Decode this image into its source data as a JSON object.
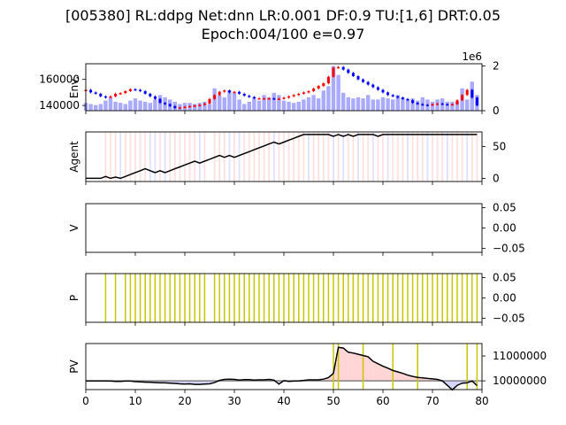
{
  "title_line1": "[005380] RL:ddpg Net:dnn LR:0.001 DF:0.9 TU:[1,6] DRT:0.05",
  "title_line2": "Epoch:004/100 e=0.97",
  "colors": {
    "buy": "#ff0000",
    "sell": "#0000ff",
    "volume": "#aaaaff",
    "hold_line": "#c7c700",
    "pos_fill": "#ffd5d5",
    "neg_fill": "#d5d5ff",
    "baseline": "#808080"
  },
  "chart_data": [
    {
      "name": "env",
      "type": "candlestick+bar",
      "ylabel": "Env.",
      "x_range": [
        0,
        80
      ],
      "price_ticks": [
        "140000",
        "160000"
      ],
      "price_range": [
        136000,
        172000
      ],
      "volume_offset_label": "1e6",
      "volume_ticks": [
        "0",
        "2"
      ],
      "volume_range": [
        0,
        2.1
      ],
      "close": [
        152000,
        150000,
        149000,
        147000,
        146000,
        147000,
        149000,
        149500,
        151000,
        152500,
        152000,
        151000,
        149000,
        147000,
        145000,
        142000,
        141000,
        139500,
        138000,
        138500,
        139000,
        139500,
        140000,
        140500,
        141500,
        145000,
        148000,
        150500,
        151500,
        150000,
        150500,
        149000,
        147500,
        146500,
        145500,
        145500,
        145500,
        145500,
        145000,
        145200,
        146000,
        147000,
        148000,
        149000,
        150000,
        151000,
        153000,
        155000,
        157000,
        162000,
        169000,
        169500,
        167500,
        165000,
        162500,
        160000,
        158000,
        156000,
        154000,
        152000,
        150000,
        148000,
        147000,
        146000,
        145000,
        144000,
        142000,
        141000,
        140500,
        140000,
        141000,
        141500,
        141000,
        140500,
        141000,
        144000,
        148000,
        152000,
        146000,
        140000
      ],
      "volume": [
        0.35,
        0.3,
        0.25,
        0.3,
        0.45,
        0.6,
        0.4,
        0.35,
        0.3,
        0.45,
        0.55,
        0.45,
        0.4,
        0.35,
        0.5,
        0.7,
        0.6,
        0.5,
        0.4,
        0.3,
        0.35,
        0.35,
        0.3,
        0.35,
        0.4,
        0.3,
        1.0,
        0.7,
        0.6,
        0.9,
        0.8,
        0.5,
        0.3,
        0.4,
        0.6,
        0.45,
        0.7,
        0.6,
        0.8,
        0.7,
        0.45,
        0.4,
        0.35,
        0.4,
        0.5,
        0.6,
        0.7,
        0.55,
        0.9,
        1.1,
        2.0,
        1.6,
        0.8,
        0.6,
        0.55,
        0.6,
        0.55,
        0.7,
        0.5,
        0.5,
        0.6,
        0.55,
        0.5,
        0.7,
        0.6,
        0.5,
        0.55,
        0.45,
        0.6,
        0.5,
        0.4,
        0.5,
        0.55,
        0.4,
        0.4,
        0.4,
        1.0,
        0.5,
        1.3,
        0.7
      ]
    },
    {
      "name": "agent",
      "type": "line",
      "ylabel": "Agent",
      "x_range": [
        0,
        80
      ],
      "y_range": [
        -5,
        73
      ],
      "y_ticks": [
        "0",
        "50"
      ],
      "num_stocks": [
        0,
        0,
        0,
        0,
        3,
        0,
        2,
        0,
        3,
        6,
        9,
        12,
        15,
        12,
        9,
        12,
        9,
        12,
        15,
        18,
        21,
        24,
        27,
        24,
        27,
        30,
        33,
        36,
        33,
        36,
        33,
        36,
        39,
        42,
        45,
        48,
        51,
        54,
        57,
        54,
        57,
        60,
        63,
        66,
        69,
        69,
        69,
        69,
        69,
        69,
        66,
        69,
        66,
        69,
        66,
        69,
        69,
        69,
        69,
        66,
        69,
        69,
        69,
        69,
        69,
        69,
        69,
        69,
        69,
        69,
        69,
        69,
        69,
        69,
        69,
        69,
        69,
        69,
        69,
        69
      ],
      "action_lines": [
        {
          "x": 4,
          "a": 1
        },
        {
          "x": 5,
          "a": 1
        },
        {
          "x": 6,
          "a": 1
        },
        {
          "x": 7,
          "a": 0
        },
        {
          "x": 8,
          "a": 1
        },
        {
          "x": 9,
          "a": 1
        },
        {
          "x": 10,
          "a": 1
        },
        {
          "x": 11,
          "a": 1
        },
        {
          "x": 12,
          "a": 1
        },
        {
          "x": 13,
          "a": 0
        },
        {
          "x": 14,
          "a": 0
        },
        {
          "x": 15,
          "a": 1
        },
        {
          "x": 16,
          "a": 0
        },
        {
          "x": 17,
          "a": 1
        },
        {
          "x": 18,
          "a": 1
        },
        {
          "x": 19,
          "a": 1
        },
        {
          "x": 20,
          "a": 1
        },
        {
          "x": 21,
          "a": 1
        },
        {
          "x": 22,
          "a": 1
        },
        {
          "x": 23,
          "a": 0
        },
        {
          "x": 24,
          "a": 1
        },
        {
          "x": 26,
          "a": 1
        },
        {
          "x": 27,
          "a": 1
        },
        {
          "x": 28,
          "a": 1
        },
        {
          "x": 29,
          "a": 0
        },
        {
          "x": 30,
          "a": 1
        },
        {
          "x": 31,
          "a": 0
        },
        {
          "x": 32,
          "a": 1
        },
        {
          "x": 33,
          "a": 1
        },
        {
          "x": 34,
          "a": 1
        },
        {
          "x": 35,
          "a": 1
        },
        {
          "x": 36,
          "a": 1
        },
        {
          "x": 37,
          "a": 1
        },
        {
          "x": 38,
          "a": 0
        },
        {
          "x": 39,
          "a": 1
        },
        {
          "x": 40,
          "a": 1
        },
        {
          "x": 41,
          "a": 1
        },
        {
          "x": 42,
          "a": 1
        },
        {
          "x": 43,
          "a": 1
        },
        {
          "x": 44,
          "a": 1
        },
        {
          "x": 45,
          "a": 0
        },
        {
          "x": 46,
          "a": 1
        },
        {
          "x": 47,
          "a": 1
        },
        {
          "x": 48,
          "a": 1
        },
        {
          "x": 49,
          "a": 1
        },
        {
          "x": 50,
          "a": 0
        },
        {
          "x": 51,
          "a": 1
        },
        {
          "x": 52,
          "a": 0
        },
        {
          "x": 53,
          "a": 1
        },
        {
          "x": 54,
          "a": 1
        },
        {
          "x": 55,
          "a": 0
        },
        {
          "x": 56,
          "a": 1
        },
        {
          "x": 57,
          "a": 1
        },
        {
          "x": 58,
          "a": 0
        },
        {
          "x": 59,
          "a": 1
        },
        {
          "x": 60,
          "a": 1
        },
        {
          "x": 61,
          "a": 0
        },
        {
          "x": 62,
          "a": 1
        },
        {
          "x": 63,
          "a": 1
        },
        {
          "x": 64,
          "a": 1
        },
        {
          "x": 65,
          "a": 0
        },
        {
          "x": 66,
          "a": 1
        },
        {
          "x": 67,
          "a": 1
        },
        {
          "x": 68,
          "a": 1
        },
        {
          "x": 69,
          "a": 0
        },
        {
          "x": 70,
          "a": 1
        },
        {
          "x": 71,
          "a": 1
        },
        {
          "x": 72,
          "a": 1
        },
        {
          "x": 73,
          "a": 0
        },
        {
          "x": 74,
          "a": 1
        },
        {
          "x": 75,
          "a": 1
        },
        {
          "x": 76,
          "a": 1
        },
        {
          "x": 77,
          "a": 0
        },
        {
          "x": 78,
          "a": 1
        },
        {
          "x": 79,
          "a": 1
        }
      ]
    },
    {
      "name": "value",
      "type": "line",
      "ylabel": "V",
      "x_range": [
        0,
        80
      ],
      "y_range": [
        -0.06,
        0.06
      ],
      "y_ticks": [
        "0.05",
        "0.00",
        "−0.05"
      ],
      "y_tick_values": [
        0.05,
        0,
        -0.05
      ]
    },
    {
      "name": "policy",
      "type": "vlines",
      "ylabel": "P",
      "x_range": [
        0,
        80
      ],
      "y_range": [
        -0.06,
        0.06
      ],
      "y_ticks": [
        "0.05",
        "0.00",
        "−0.05"
      ],
      "y_tick_values": [
        0.05,
        0,
        -0.05
      ],
      "exploration_x": [
        4,
        6,
        8,
        9,
        10,
        11,
        12,
        13,
        14,
        15,
        16,
        17,
        18,
        19,
        20,
        21,
        22,
        23,
        24,
        26,
        27,
        28,
        29,
        30,
        31,
        32,
        33,
        34,
        35,
        36,
        37,
        38,
        39,
        40,
        41,
        42,
        43,
        44,
        45,
        46,
        47,
        48,
        49,
        50,
        51,
        52,
        53,
        54,
        55,
        56,
        57,
        58,
        59,
        60,
        61,
        62,
        63,
        64,
        65,
        66,
        67,
        68,
        69,
        70,
        71,
        72,
        73,
        74,
        75,
        76,
        77,
        78,
        79
      ]
    },
    {
      "name": "pv",
      "type": "line+fill",
      "ylabel": "PV",
      "x_range": [
        0,
        80
      ],
      "y_range": [
        9650000,
        11500000
      ],
      "y_ticks": [
        "10000000",
        "11000000"
      ],
      "y_tick_values": [
        10000000,
        11000000
      ],
      "baseline": 10000000,
      "x_ticks": [
        "0",
        "10",
        "20",
        "30",
        "40",
        "50",
        "60",
        "70",
        "80"
      ],
      "x_tick_values": [
        0,
        10,
        20,
        30,
        40,
        50,
        60,
        70,
        80
      ],
      "pv": [
        10000000,
        10000000,
        10000000,
        10000000,
        10000000,
        9990000,
        9980000,
        9980000,
        9990000,
        9990000,
        9970000,
        9960000,
        9950000,
        9940000,
        9930000,
        9920000,
        9920000,
        9910000,
        9900000,
        9880000,
        9870000,
        9880000,
        9860000,
        9860000,
        9870000,
        9880000,
        9930000,
        10020000,
        10060000,
        10070000,
        10060000,
        10030000,
        10050000,
        10050000,
        10030000,
        10040000,
        10040000,
        10060000,
        10030000,
        9870000,
        10010000,
        9980000,
        9990000,
        10000000,
        10020000,
        10040000,
        10040000,
        10040000,
        10070000,
        10130000,
        10300000,
        11350000,
        11320000,
        11150000,
        11120000,
        11070000,
        11020000,
        10970000,
        10790000,
        10690000,
        10590000,
        10510000,
        10420000,
        10360000,
        10300000,
        10230000,
        10180000,
        10140000,
        10120000,
        10100000,
        10080000,
        10060000,
        10000000,
        9820000,
        9640000,
        9820000,
        9910000,
        9920000,
        10000000,
        9810000
      ],
      "hold_x": [
        50,
        51,
        56,
        62,
        67,
        77,
        79
      ]
    }
  ]
}
